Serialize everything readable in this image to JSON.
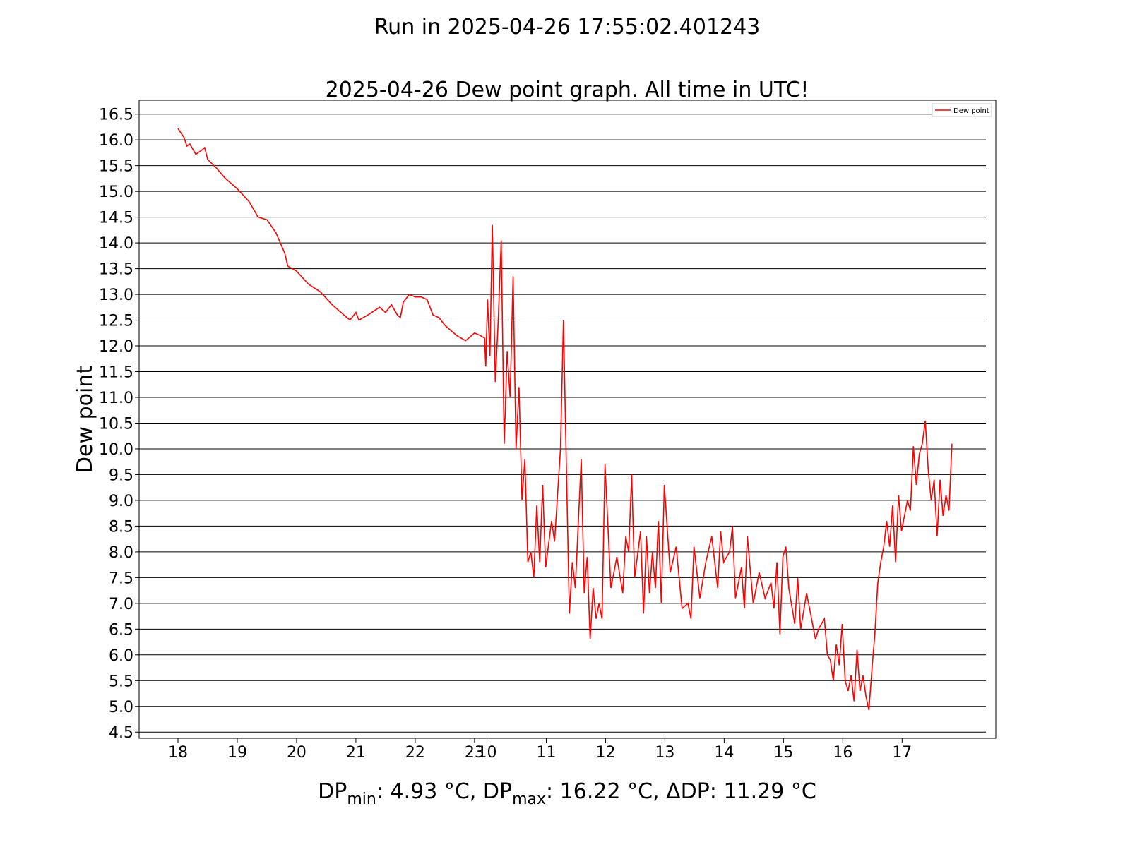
{
  "chart_data": {
    "type": "line",
    "suptitle": "Run in 2025-04-26 17:55:02.401243",
    "title": "2025-04-26 Dew point graph. All time in UTC!",
    "ylabel": "Dew point",
    "stats": [
      "DP",
      "min",
      ": 4.93 °C,   DP",
      "max",
      ": 16.22 °C,   ΔDP: 11.29 °C"
    ],
    "legend": "upper right",
    "grid": true,
    "xlim": [
      -0.655,
      13.79
    ],
    "ylim": [
      4.38,
      16.77
    ],
    "xticks": [
      {
        "value": 0,
        "label": "18"
      },
      {
        "value": 1,
        "label": "19"
      },
      {
        "value": 2,
        "label": "20"
      },
      {
        "value": 3,
        "label": "21"
      },
      {
        "value": 4,
        "label": "22"
      },
      {
        "value": 5,
        "label": "23"
      },
      {
        "value": 5.21,
        "label": "10"
      },
      {
        "value": 6.21,
        "label": "11"
      },
      {
        "value": 7.21,
        "label": "12"
      },
      {
        "value": 8.21,
        "label": "13"
      },
      {
        "value": 9.21,
        "label": "14"
      },
      {
        "value": 10.21,
        "label": "15"
      },
      {
        "value": 11.21,
        "label": "16"
      },
      {
        "value": 12.21,
        "label": "17"
      }
    ],
    "yticks": [
      4.5,
      {
        "value": 5,
        "label": "5.0"
      },
      5.5,
      {
        "value": 6,
        "label": "6.0"
      },
      6.5,
      {
        "value": 7,
        "label": "7.0"
      },
      7.5,
      {
        "value": 8,
        "label": "8.0"
      },
      8.5,
      {
        "value": 9,
        "label": "9.0"
      },
      9.5,
      {
        "value": 10,
        "label": "10.0"
      },
      10.5,
      {
        "value": 11,
        "label": "11.0"
      },
      11.5,
      {
        "value": 12,
        "label": "12.0"
      },
      12.5,
      {
        "value": 13,
        "label": "13.0"
      },
      13.5,
      {
        "value": 14,
        "label": "14.0"
      },
      14.5,
      {
        "value": 15,
        "label": "15.0"
      },
      15.5,
      {
        "value": 16,
        "label": "16.0"
      },
      16.5
    ],
    "x": [
      0,
      0.1,
      0.15,
      0.2,
      0.3,
      0.4,
      0.45,
      0.5,
      0.65,
      0.8,
      1.0,
      1.2,
      1.35,
      1.5,
      1.65,
      1.8,
      1.85,
      2.0,
      2.2,
      2.4,
      2.6,
      2.8,
      2.9,
      3.0,
      3.05,
      3.2,
      3.4,
      3.5,
      3.6,
      3.7,
      3.75,
      3.8,
      3.9,
      4.0,
      4.1,
      4.2,
      4.3,
      4.4,
      4.5,
      4.6,
      4.7,
      4.85,
      5.0,
      5.1,
      5.17,
      5.19,
      5.22,
      5.26,
      5.3,
      5.35,
      5.4,
      5.45,
      5.5,
      5.55,
      5.6,
      5.65,
      5.7,
      5.75,
      5.8,
      5.85,
      5.9,
      5.95,
      6.0,
      6.05,
      6.1,
      6.15,
      6.2,
      6.3,
      6.35,
      6.45,
      6.5,
      6.55,
      6.6,
      6.65,
      6.7,
      6.8,
      6.85,
      6.9,
      6.95,
      7.0,
      7.05,
      7.1,
      7.15,
      7.2,
      7.3,
      7.4,
      7.5,
      7.55,
      7.6,
      7.65,
      7.7,
      7.8,
      7.85,
      7.9,
      7.95,
      8.0,
      8.05,
      8.1,
      8.15,
      8.2,
      8.3,
      8.4,
      8.5,
      8.6,
      8.65,
      8.7,
      8.8,
      8.9,
      9.0,
      9.1,
      9.15,
      9.2,
      9.3,
      9.35,
      9.4,
      9.5,
      9.55,
      9.6,
      9.7,
      9.8,
      9.9,
      10.0,
      10.05,
      10.1,
      10.15,
      10.2,
      10.25,
      10.3,
      10.4,
      10.45,
      10.5,
      10.6,
      10.7,
      10.75,
      10.8,
      10.9,
      10.95,
      11.0,
      11.05,
      11.1,
      11.15,
      11.2,
      11.25,
      11.3,
      11.35,
      11.4,
      11.45,
      11.5,
      11.55,
      11.6,
      11.65,
      11.7,
      11.75,
      11.8,
      11.85,
      11.9,
      11.95,
      12.0,
      12.05,
      12.1,
      12.15,
      12.2,
      12.3,
      12.35,
      12.4,
      12.45,
      12.5,
      12.55,
      12.6,
      12.65,
      12.7,
      12.75,
      12.8,
      12.85,
      12.9,
      12.95,
      13.0,
      13.05
    ],
    "series": [
      {
        "name": "Dew point",
        "color": "#ff0000",
        "values": [
          16.22,
          16.05,
          15.88,
          15.92,
          15.72,
          15.8,
          15.85,
          15.62,
          15.45,
          15.25,
          15.05,
          14.8,
          14.5,
          14.45,
          14.2,
          13.8,
          13.55,
          13.45,
          13.2,
          13.05,
          12.8,
          12.6,
          12.5,
          12.65,
          12.5,
          12.6,
          12.75,
          12.65,
          12.8,
          12.6,
          12.55,
          12.85,
          13.0,
          12.95,
          12.95,
          12.9,
          12.6,
          12.55,
          12.4,
          12.3,
          12.2,
          12.1,
          12.25,
          12.2,
          12.15,
          11.6,
          12.9,
          11.8,
          14.35,
          11.3,
          12.5,
          14.05,
          10.1,
          11.9,
          11.0,
          13.35,
          10.0,
          11.2,
          9.0,
          9.8,
          7.8,
          8.0,
          7.5,
          8.9,
          7.8,
          9.3,
          7.7,
          8.6,
          8.2,
          10.0,
          12.5,
          9.6,
          6.8,
          7.8,
          7.3,
          9.8,
          7.2,
          7.9,
          6.3,
          7.3,
          6.7,
          7.0,
          6.7,
          9.7,
          7.3,
          7.9,
          7.2,
          8.3,
          8.0,
          9.5,
          7.5,
          8.4,
          6.8,
          8.3,
          7.2,
          8.0,
          7.3,
          8.6,
          7.0,
          9.3,
          7.6,
          8.1,
          6.9,
          7.0,
          6.7,
          8.1,
          7.1,
          7.8,
          8.3,
          7.3,
          8.4,
          7.8,
          8.0,
          8.5,
          7.1,
          7.7,
          6.9,
          8.3,
          7.0,
          7.6,
          7.1,
          7.4,
          6.9,
          7.8,
          6.4,
          7.9,
          8.1,
          7.3,
          6.6,
          7.5,
          6.5,
          7.2,
          6.6,
          6.3,
          6.5,
          6.7,
          6.0,
          5.9,
          5.5,
          6.2,
          5.8,
          6.6,
          5.5,
          5.3,
          5.6,
          5.1,
          6.1,
          5.3,
          5.6,
          5.2,
          4.93,
          5.7,
          6.4,
          7.4,
          7.8,
          8.1,
          8.6,
          8.1,
          8.9,
          7.8,
          9.1,
          8.4,
          9.0,
          8.8,
          10.05,
          9.3,
          9.9,
          10.1,
          10.55,
          9.6,
          9.0,
          9.4,
          8.3,
          9.4,
          8.7,
          9.1,
          8.8,
          10.1
        ]
      }
    ]
  }
}
